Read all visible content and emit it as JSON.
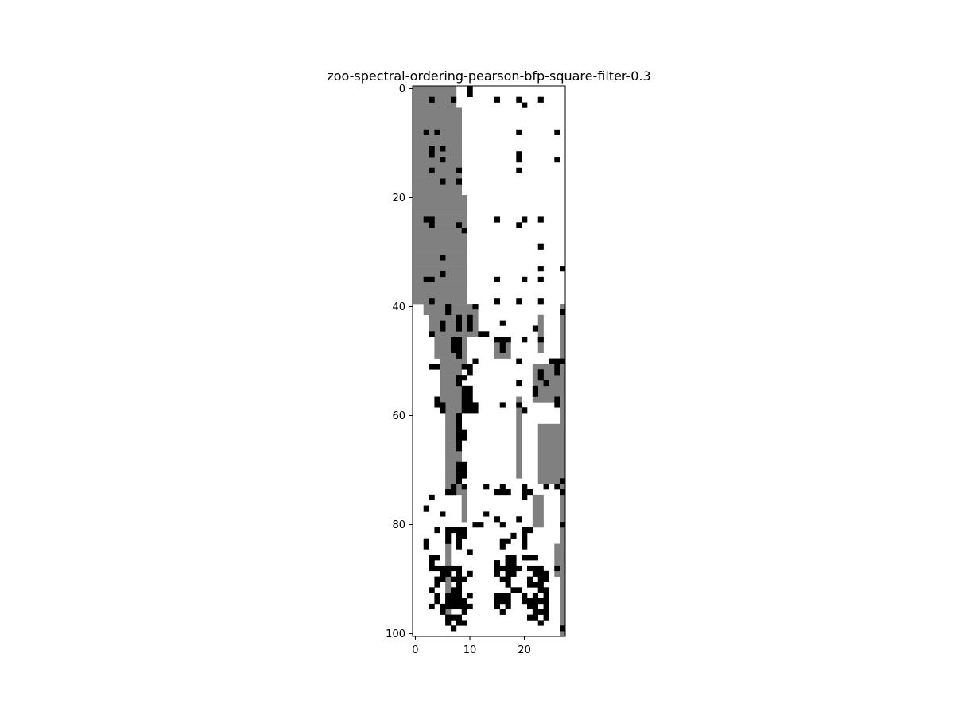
{
  "chart_data": {
    "type": "heatmap",
    "title": "zoo-spectral-ordering-pearson-bfp-square-filter-0.3",
    "xlabel": "",
    "ylabel": "",
    "xlim": [
      0,
      27
    ],
    "ylim": [
      0,
      100
    ],
    "x_ticks": [
      "0",
      "10",
      "20"
    ],
    "y_ticks": [
      "0",
      "20",
      "40",
      "60",
      "80",
      "100"
    ],
    "grid": false,
    "legend": "none",
    "colors": {
      "filtered": "#808080",
      "present": "#000000",
      "absent": "#ffffff"
    },
    "gray_row_ranges": [
      [
        0,
        0,
        7
      ],
      [
        1,
        0,
        7
      ],
      [
        2,
        0,
        7
      ],
      [
        3,
        0,
        7
      ],
      [
        4,
        0,
        8
      ],
      [
        5,
        0,
        8
      ],
      [
        6,
        0,
        8
      ],
      [
        7,
        0,
        8
      ],
      [
        8,
        0,
        8
      ],
      [
        9,
        0,
        8
      ],
      [
        10,
        0,
        8
      ],
      [
        11,
        0,
        8
      ],
      [
        12,
        0,
        8
      ],
      [
        13,
        0,
        8
      ],
      [
        14,
        0,
        8
      ],
      [
        15,
        0,
        8
      ],
      [
        16,
        0,
        8
      ],
      [
        17,
        0,
        8
      ],
      [
        18,
        0,
        8
      ],
      [
        19,
        0,
        8
      ],
      [
        20,
        0,
        9
      ],
      [
        21,
        0,
        9
      ],
      [
        22,
        0,
        9
      ],
      [
        23,
        0,
        9
      ],
      [
        24,
        0,
        9
      ],
      [
        25,
        0,
        9
      ],
      [
        26,
        0,
        9
      ],
      [
        27,
        0,
        9
      ],
      [
        28,
        0,
        9
      ],
      [
        29,
        0,
        9
      ],
      [
        30,
        0,
        9
      ],
      [
        31,
        0,
        9
      ],
      [
        32,
        0,
        9
      ],
      [
        33,
        0,
        9
      ],
      [
        34,
        0,
        9
      ],
      [
        35,
        0,
        9
      ],
      [
        36,
        0,
        9
      ],
      [
        37,
        0,
        9
      ],
      [
        38,
        0,
        9
      ],
      [
        39,
        0,
        9
      ],
      [
        40,
        2,
        10
      ],
      [
        41,
        2,
        11
      ],
      [
        42,
        3,
        11
      ],
      [
        43,
        3,
        11
      ],
      [
        44,
        3,
        11
      ],
      [
        45,
        4,
        11
      ],
      [
        46,
        4,
        9
      ],
      [
        47,
        4,
        9
      ],
      [
        48,
        4,
        9
      ],
      [
        49,
        4,
        9
      ],
      [
        50,
        5,
        9
      ],
      [
        51,
        5,
        8
      ],
      [
        52,
        5,
        8
      ],
      [
        53,
        5,
        8
      ],
      [
        54,
        5,
        8
      ],
      [
        55,
        5,
        8
      ],
      [
        56,
        5,
        8
      ],
      [
        57,
        5,
        8
      ],
      [
        58,
        5,
        8
      ],
      [
        59,
        5,
        8
      ],
      [
        60,
        6,
        8
      ],
      [
        61,
        6,
        8
      ],
      [
        62,
        6,
        8
      ],
      [
        63,
        6,
        8
      ],
      [
        64,
        6,
        8
      ],
      [
        65,
        6,
        8
      ],
      [
        66,
        6,
        8
      ],
      [
        67,
        6,
        8
      ],
      [
        68,
        6,
        8
      ],
      [
        69,
        6,
        8
      ],
      [
        70,
        6,
        8
      ],
      [
        71,
        6,
        8
      ],
      [
        72,
        6,
        8
      ],
      [
        73,
        6,
        9
      ],
      [
        74,
        6,
        9
      ],
      [
        75,
        9,
        9
      ],
      [
        76,
        9,
        9
      ],
      [
        77,
        9,
        9
      ],
      [
        78,
        9,
        9
      ],
      [
        79,
        9,
        9
      ],
      [
        84,
        6,
        6
      ],
      [
        85,
        6,
        6
      ],
      [
        86,
        6,
        6
      ],
      [
        87,
        6,
        6
      ],
      [
        88,
        6,
        6
      ],
      [
        89,
        6,
        6
      ],
      [
        90,
        6,
        6
      ],
      [
        91,
        6,
        6
      ],
      [
        92,
        6,
        6
      ],
      [
        93,
        6,
        6
      ],
      [
        94,
        6,
        6
      ],
      [
        95,
        6,
        6
      ],
      [
        96,
        6,
        6
      ],
      [
        97,
        6,
        6
      ]
    ],
    "gray_col_ranges": [
      [
        19,
        57,
        71
      ],
      [
        23,
        42,
        48
      ],
      [
        27,
        40,
        100
      ]
    ],
    "gray_blocks": [
      [
        22,
        51,
        26,
        57
      ],
      [
        23,
        62,
        26,
        72
      ],
      [
        22,
        75,
        23,
        80
      ],
      [
        15,
        46,
        17,
        49
      ],
      [
        26,
        84,
        26,
        89
      ]
    ],
    "black_cells": [
      [
        0,
        10
      ],
      [
        1,
        10
      ],
      [
        2,
        3
      ],
      [
        2,
        7
      ],
      [
        2,
        15
      ],
      [
        2,
        19
      ],
      [
        2,
        23
      ],
      [
        3,
        20
      ],
      [
        8,
        2
      ],
      [
        8,
        4
      ],
      [
        8,
        19
      ],
      [
        8,
        26
      ],
      [
        11,
        3
      ],
      [
        11,
        5
      ],
      [
        12,
        3
      ],
      [
        12,
        19
      ],
      [
        13,
        5
      ],
      [
        13,
        19
      ],
      [
        13,
        26
      ],
      [
        15,
        3
      ],
      [
        15,
        8
      ],
      [
        15,
        19
      ],
      [
        17,
        5
      ],
      [
        17,
        8
      ],
      [
        24,
        2
      ],
      [
        24,
        3
      ],
      [
        24,
        15
      ],
      [
        24,
        20
      ],
      [
        24,
        23
      ],
      [
        25,
        3
      ],
      [
        25,
        8
      ],
      [
        25,
        19
      ],
      [
        26,
        9
      ],
      [
        29,
        23
      ],
      [
        31,
        5
      ],
      [
        33,
        23
      ],
      [
        33,
        27
      ],
      [
        34,
        5
      ],
      [
        35,
        2
      ],
      [
        35,
        3
      ],
      [
        35,
        15
      ],
      [
        35,
        20
      ],
      [
        35,
        23
      ],
      [
        39,
        3
      ],
      [
        39,
        15
      ],
      [
        39,
        19
      ],
      [
        39,
        23
      ],
      [
        40,
        6
      ],
      [
        40,
        11
      ],
      [
        41,
        6
      ],
      [
        41,
        27
      ],
      [
        42,
        8
      ],
      [
        42,
        10
      ],
      [
        43,
        5
      ],
      [
        43,
        8
      ],
      [
        43,
        10
      ],
      [
        43,
        16
      ],
      [
        44,
        5
      ],
      [
        44,
        8
      ],
      [
        44,
        10
      ],
      [
        44,
        22
      ],
      [
        45,
        3
      ],
      [
        45,
        12
      ],
      [
        45,
        13
      ],
      [
        46,
        7
      ],
      [
        46,
        8
      ],
      [
        46,
        15
      ],
      [
        46,
        16
      ],
      [
        46,
        17
      ],
      [
        46,
        20
      ],
      [
        46,
        23
      ],
      [
        47,
        7
      ],
      [
        47,
        8
      ],
      [
        47,
        16
      ],
      [
        48,
        7
      ],
      [
        48,
        8
      ],
      [
        48,
        16
      ],
      [
        49,
        8
      ],
      [
        50,
        11
      ],
      [
        50,
        19
      ],
      [
        50,
        25
      ],
      [
        50,
        26
      ],
      [
        50,
        27
      ],
      [
        51,
        3
      ],
      [
        51,
        4
      ],
      [
        51,
        9
      ],
      [
        51,
        10
      ],
      [
        51,
        26
      ],
      [
        52,
        10
      ],
      [
        52,
        23
      ],
      [
        52,
        26
      ],
      [
        53,
        8
      ],
      [
        53,
        9
      ],
      [
        53,
        23
      ],
      [
        54,
        8
      ],
      [
        54,
        19
      ],
      [
        54,
        24
      ],
      [
        55,
        9
      ],
      [
        55,
        10
      ],
      [
        55,
        22
      ],
      [
        56,
        9
      ],
      [
        56,
        10
      ],
      [
        56,
        22
      ],
      [
        57,
        4
      ],
      [
        57,
        9
      ],
      [
        57,
        10
      ],
      [
        57,
        26
      ],
      [
        58,
        4
      ],
      [
        58,
        5
      ],
      [
        58,
        9
      ],
      [
        58,
        10
      ],
      [
        58,
        11
      ],
      [
        58,
        16
      ],
      [
        58,
        19
      ],
      [
        58,
        26
      ],
      [
        59,
        5
      ],
      [
        59,
        9
      ],
      [
        59,
        10
      ],
      [
        59,
        11
      ],
      [
        59,
        20
      ],
      [
        60,
        8
      ],
      [
        61,
        8
      ],
      [
        62,
        8
      ],
      [
        63,
        8
      ],
      [
        63,
        9
      ],
      [
        64,
        8
      ],
      [
        64,
        9
      ],
      [
        65,
        8
      ],
      [
        66,
        8
      ],
      [
        69,
        8
      ],
      [
        69,
        9
      ],
      [
        70,
        8
      ],
      [
        70,
        9
      ],
      [
        71,
        8
      ],
      [
        71,
        9
      ],
      [
        72,
        8
      ],
      [
        72,
        27
      ],
      [
        73,
        7
      ],
      [
        73,
        9
      ],
      [
        73,
        13
      ],
      [
        73,
        16
      ],
      [
        73,
        20
      ],
      [
        73,
        24
      ],
      [
        73,
        26
      ],
      [
        74,
        6
      ],
      [
        74,
        7
      ],
      [
        74,
        15
      ],
      [
        74,
        16
      ],
      [
        74,
        17
      ],
      [
        74,
        20
      ],
      [
        74,
        21
      ],
      [
        74,
        27
      ],
      [
        75,
        3
      ],
      [
        75,
        20
      ],
      [
        77,
        2
      ],
      [
        78,
        5
      ],
      [
        78,
        13
      ],
      [
        79,
        15
      ],
      [
        79,
        19
      ],
      [
        80,
        11
      ],
      [
        80,
        12
      ],
      [
        80,
        16
      ],
      [
        80,
        27
      ],
      [
        81,
        4
      ],
      [
        81,
        6
      ],
      [
        81,
        7
      ],
      [
        81,
        8
      ],
      [
        81,
        9
      ],
      [
        81,
        20
      ],
      [
        81,
        21
      ],
      [
        82,
        6
      ],
      [
        82,
        8
      ],
      [
        82,
        9
      ],
      [
        82,
        18
      ],
      [
        82,
        20
      ],
      [
        83,
        2
      ],
      [
        83,
        6
      ],
      [
        83,
        8
      ],
      [
        83,
        16
      ],
      [
        83,
        17
      ],
      [
        83,
        20
      ],
      [
        84,
        2
      ],
      [
        84,
        8
      ],
      [
        84,
        16
      ],
      [
        84,
        20
      ],
      [
        85,
        10
      ],
      [
        86,
        3
      ],
      [
        86,
        4
      ],
      [
        86,
        17
      ],
      [
        86,
        18
      ],
      [
        86,
        20
      ],
      [
        86,
        21
      ],
      [
        86,
        22
      ],
      [
        87,
        3
      ],
      [
        87,
        15
      ],
      [
        87,
        17
      ],
      [
        87,
        18
      ],
      [
        88,
        3
      ],
      [
        88,
        4
      ],
      [
        88,
        5
      ],
      [
        88,
        6
      ],
      [
        88,
        7
      ],
      [
        88,
        8
      ],
      [
        88,
        15
      ],
      [
        88,
        16
      ],
      [
        88,
        17
      ],
      [
        88,
        18
      ],
      [
        88,
        19
      ],
      [
        88,
        21
      ],
      [
        88,
        22
      ],
      [
        88,
        23
      ],
      [
        88,
        26
      ],
      [
        89,
        5
      ],
      [
        89,
        6
      ],
      [
        89,
        8
      ],
      [
        89,
        10
      ],
      [
        89,
        15
      ],
      [
        89,
        17
      ],
      [
        89,
        18
      ],
      [
        89,
        22
      ],
      [
        89,
        23
      ],
      [
        89,
        24
      ],
      [
        90,
        4
      ],
      [
        90,
        5
      ],
      [
        90,
        7
      ],
      [
        90,
        8
      ],
      [
        90,
        9
      ],
      [
        90,
        16
      ],
      [
        90,
        17
      ],
      [
        90,
        21
      ],
      [
        90,
        23
      ],
      [
        90,
        24
      ],
      [
        91,
        4
      ],
      [
        91,
        8
      ],
      [
        91,
        17
      ],
      [
        91,
        21
      ],
      [
        91,
        22
      ],
      [
        91,
        23
      ],
      [
        92,
        3
      ],
      [
        92,
        7
      ],
      [
        92,
        8
      ],
      [
        92,
        18
      ],
      [
        92,
        19
      ],
      [
        92,
        23
      ],
      [
        92,
        24
      ],
      [
        93,
        4
      ],
      [
        93,
        6
      ],
      [
        93,
        7
      ],
      [
        93,
        8
      ],
      [
        93,
        10
      ],
      [
        93,
        15
      ],
      [
        93,
        16
      ],
      [
        93,
        17
      ],
      [
        93,
        20
      ],
      [
        93,
        22
      ],
      [
        93,
        24
      ],
      [
        94,
        4
      ],
      [
        94,
        6
      ],
      [
        94,
        7
      ],
      [
        94,
        8
      ],
      [
        94,
        9
      ],
      [
        94,
        15
      ],
      [
        94,
        16
      ],
      [
        94,
        17
      ],
      [
        94,
        20
      ],
      [
        94,
        21
      ],
      [
        94,
        22
      ],
      [
        94,
        23
      ],
      [
        94,
        24
      ],
      [
        95,
        3
      ],
      [
        95,
        5
      ],
      [
        95,
        6
      ],
      [
        95,
        7
      ],
      [
        95,
        8
      ],
      [
        95,
        9
      ],
      [
        95,
        10
      ],
      [
        95,
        15
      ],
      [
        95,
        17
      ],
      [
        95,
        21
      ],
      [
        95,
        22
      ],
      [
        95,
        24
      ],
      [
        96,
        5
      ],
      [
        96,
        9
      ],
      [
        96,
        16
      ],
      [
        96,
        22
      ],
      [
        96,
        23
      ],
      [
        96,
        24
      ],
      [
        97,
        6
      ],
      [
        97,
        7
      ],
      [
        97,
        8
      ],
      [
        97,
        21
      ],
      [
        97,
        22
      ],
      [
        97,
        24
      ],
      [
        98,
        6
      ],
      [
        98,
        8
      ],
      [
        98,
        9
      ],
      [
        98,
        23
      ],
      [
        99,
        7
      ],
      [
        99,
        27
      ]
    ]
  }
}
